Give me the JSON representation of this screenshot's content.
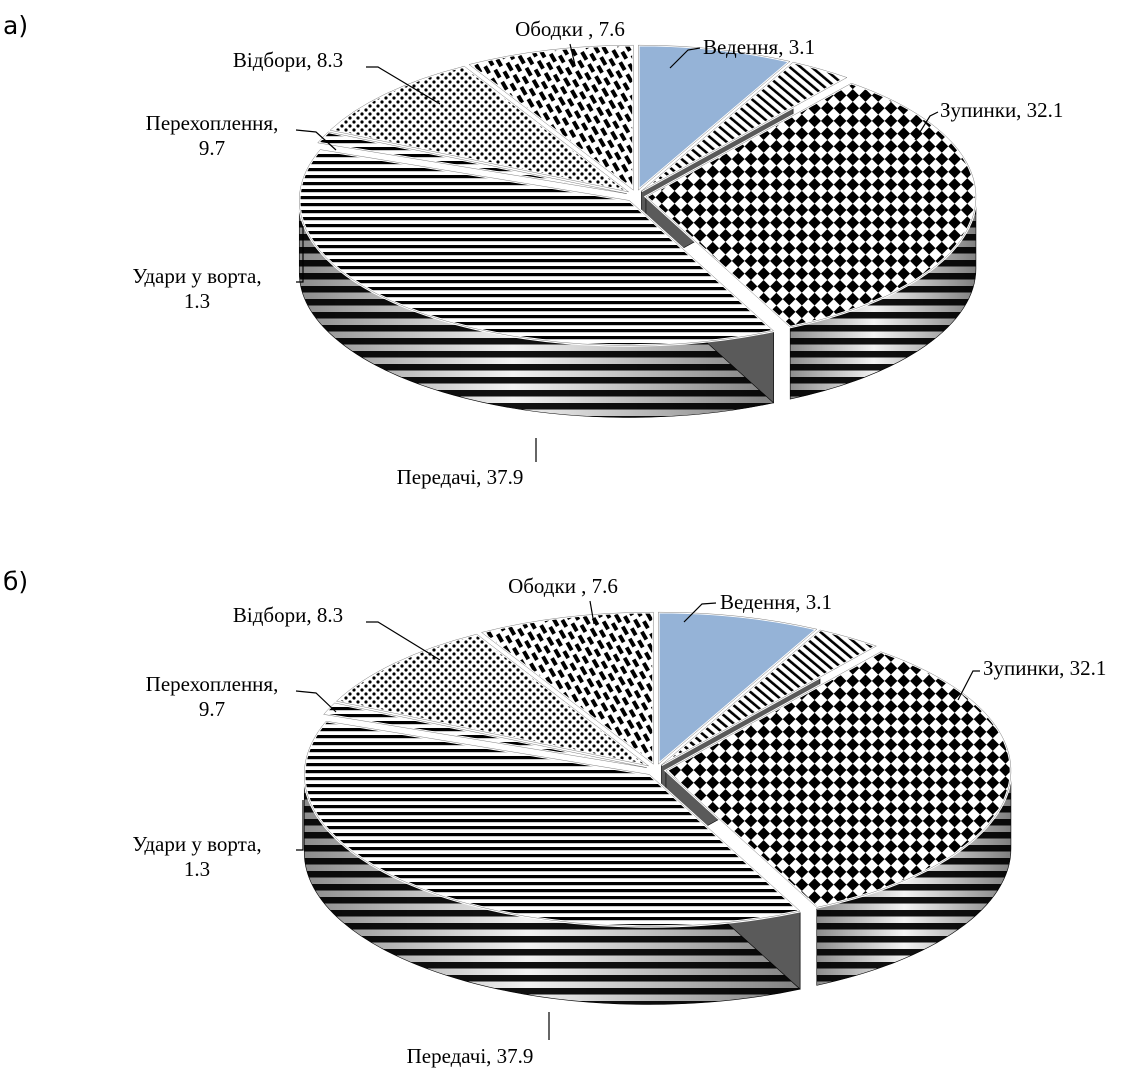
{
  "chart_data": [
    {
      "type": "pie",
      "panel_label": "а)",
      "title": "",
      "slices": [
        {
          "label_lines": [
            "Ободки , 7.6"
          ],
          "name": "Ободки",
          "value": 7.6,
          "pattern": "solid-blue"
        },
        {
          "label_lines": [
            "Ведення, 3.1"
          ],
          "name": "Ведення",
          "value": 3.1,
          "pattern": "diagonal-stripes"
        },
        {
          "label_lines": [
            "Зупинки, 32.1"
          ],
          "name": "Зупинки",
          "value": 32.1,
          "pattern": "checker"
        },
        {
          "label_lines": [
            "Передачі, 37.9"
          ],
          "name": "Передачі",
          "value": 37.9,
          "pattern": "horizontal-lines"
        },
        {
          "label_lines": [
            "Удари у ворта,",
            "1.3"
          ],
          "name": "Удари у ворта",
          "value": 1.3,
          "pattern": "horizontal-lines"
        },
        {
          "label_lines": [
            "Перехоплення,",
            "9.7"
          ],
          "name": "Перехоплення",
          "value": 9.7,
          "pattern": "dots"
        },
        {
          "label_lines": [
            "Відбори, 8.3"
          ],
          "name": "Відбори",
          "value": 8.3,
          "pattern": "vertical-dashes"
        }
      ],
      "style": "3d-exploded",
      "colors": {
        "solid-blue": "#95b3d7",
        "ink": "#000000"
      }
    },
    {
      "type": "pie",
      "panel_label": "б)",
      "title": "",
      "slices": [
        {
          "label_lines": [
            "Ободки , 7.6"
          ],
          "name": "Ободки",
          "value": 7.6,
          "pattern": "solid-blue"
        },
        {
          "label_lines": [
            "Ведення, 3.1"
          ],
          "name": "Ведення",
          "value": 3.1,
          "pattern": "diagonal-stripes"
        },
        {
          "label_lines": [
            "Зупинки, 32.1"
          ],
          "name": "Зупинки",
          "value": 32.1,
          "pattern": "checker"
        },
        {
          "label_lines": [
            "Передачі, 37.9"
          ],
          "name": "Передачі",
          "value": 37.9,
          "pattern": "horizontal-lines"
        },
        {
          "label_lines": [
            "Удари у ворта,",
            "1.3"
          ],
          "name": "Удари у ворта",
          "value": 1.3,
          "pattern": "horizontal-lines"
        },
        {
          "label_lines": [
            "Перехоплення,",
            "9.7"
          ],
          "name": "Перехоплення",
          "value": 9.7,
          "pattern": "dots"
        },
        {
          "label_lines": [
            "Відбори, 8.3"
          ],
          "name": "Відбори",
          "value": 8.3,
          "pattern": "vertical-dashes"
        }
      ],
      "style": "3d-exploded",
      "colors": {
        "solid-blue": "#95b3d7",
        "ink": "#000000"
      }
    }
  ]
}
